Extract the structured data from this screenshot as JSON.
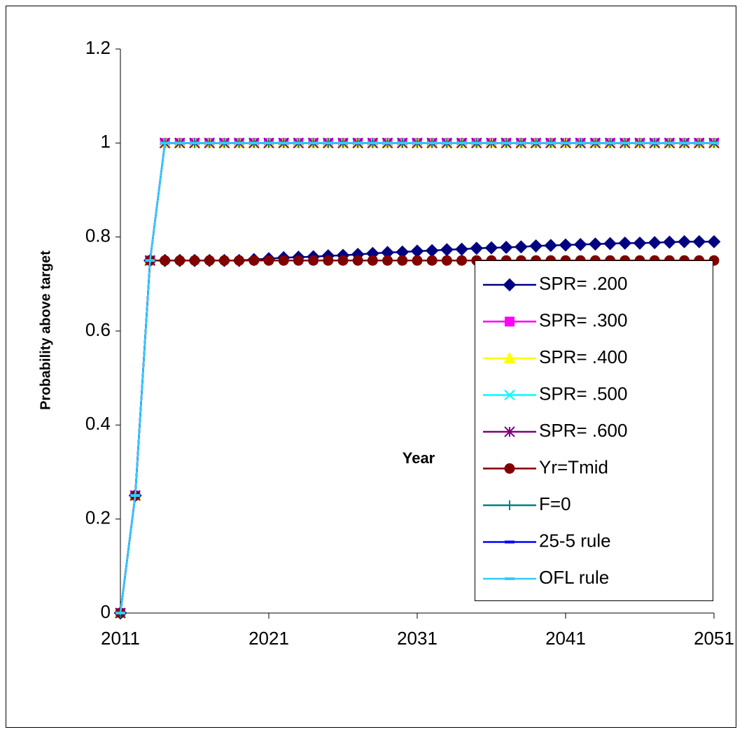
{
  "chart_data": {
    "type": "line",
    "x_label": "Year",
    "y_label": "Probability above target",
    "x": [
      2011,
      2012,
      2013,
      2014,
      2015,
      2016,
      2017,
      2018,
      2019,
      2020,
      2021,
      2022,
      2023,
      2024,
      2025,
      2026,
      2027,
      2028,
      2029,
      2030,
      2031,
      2032,
      2033,
      2034,
      2035,
      2036,
      2037,
      2038,
      2039,
      2040,
      2041,
      2042,
      2043,
      2044,
      2045,
      2046,
      2047,
      2048,
      2049,
      2050,
      2051
    ],
    "xlim": [
      2011,
      2051
    ],
    "xticks": [
      2011,
      2021,
      2031,
      2041,
      2051
    ],
    "ylim": [
      0,
      1.2
    ],
    "yticks": [
      0,
      0.2,
      0.4,
      0.6,
      0.8,
      1,
      1.2
    ],
    "grid": false,
    "legend": "lower right",
    "series": [
      {
        "name": "SPR= .200",
        "color": "#000080",
        "marker": "diamond",
        "values": [
          0,
          0.25,
          0.75,
          0.75,
          0.75,
          0.75,
          0.75,
          0.75,
          0.75,
          0.752,
          0.754,
          0.756,
          0.757,
          0.758,
          0.76,
          0.761,
          0.763,
          0.765,
          0.767,
          0.768,
          0.77,
          0.771,
          0.773,
          0.774,
          0.776,
          0.777,
          0.778,
          0.779,
          0.781,
          0.782,
          0.783,
          0.784,
          0.785,
          0.786,
          0.787,
          0.787,
          0.788,
          0.789,
          0.79,
          0.79,
          0.79
        ]
      },
      {
        "name": "SPR= .300",
        "color": "#ff00ff",
        "marker": "square",
        "values": [
          0,
          0.25,
          0.75,
          1,
          1,
          1,
          1,
          1,
          1,
          1,
          1,
          1,
          1,
          1,
          1,
          1,
          1,
          1,
          1,
          1,
          1,
          1,
          1,
          1,
          1,
          1,
          1,
          1,
          1,
          1,
          1,
          1,
          1,
          1,
          1,
          1,
          1,
          1,
          1,
          1,
          1
        ]
      },
      {
        "name": "SPR= .400",
        "color": "#ffff00",
        "marker": "triangle",
        "values": [
          0,
          0.25,
          0.75,
          1,
          1,
          1,
          1,
          1,
          1,
          1,
          1,
          1,
          1,
          1,
          1,
          1,
          1,
          1,
          1,
          1,
          1,
          1,
          1,
          1,
          1,
          1,
          1,
          1,
          1,
          1,
          1,
          1,
          1,
          1,
          1,
          1,
          1,
          1,
          1,
          1,
          1
        ]
      },
      {
        "name": "SPR= .500",
        "color": "#00ffff",
        "marker": "x",
        "values": [
          0,
          0.25,
          0.75,
          1,
          1,
          1,
          1,
          1,
          1,
          1,
          1,
          1,
          1,
          1,
          1,
          1,
          1,
          1,
          1,
          1,
          1,
          1,
          1,
          1,
          1,
          1,
          1,
          1,
          1,
          1,
          1,
          1,
          1,
          1,
          1,
          1,
          1,
          1,
          1,
          1,
          1
        ]
      },
      {
        "name": "SPR= .600",
        "color": "#800080",
        "marker": "star",
        "values": [
          0,
          0.25,
          0.75,
          1,
          1,
          1,
          1,
          1,
          1,
          1,
          1,
          1,
          1,
          1,
          1,
          1,
          1,
          1,
          1,
          1,
          1,
          1,
          1,
          1,
          1,
          1,
          1,
          1,
          1,
          1,
          1,
          1,
          1,
          1,
          1,
          1,
          1,
          1,
          1,
          1,
          1
        ]
      },
      {
        "name": "Yr=Tmid",
        "color": "#800000",
        "marker": "circle",
        "values": [
          0,
          0.25,
          0.75,
          0.75,
          0.75,
          0.75,
          0.75,
          0.75,
          0.75,
          0.75,
          0.75,
          0.75,
          0.75,
          0.75,
          0.75,
          0.75,
          0.75,
          0.75,
          0.75,
          0.75,
          0.75,
          0.75,
          0.75,
          0.75,
          0.75,
          0.75,
          0.75,
          0.75,
          0.75,
          0.75,
          0.75,
          0.75,
          0.75,
          0.75,
          0.75,
          0.75,
          0.75,
          0.75,
          0.75,
          0.75,
          0.75
        ]
      },
      {
        "name": "F=0",
        "color": "#008080",
        "marker": "plus",
        "values": [
          0,
          0.25,
          0.75,
          1,
          1,
          1,
          1,
          1,
          1,
          1,
          1,
          1,
          1,
          1,
          1,
          1,
          1,
          1,
          1,
          1,
          1,
          1,
          1,
          1,
          1,
          1,
          1,
          1,
          1,
          1,
          1,
          1,
          1,
          1,
          1,
          1,
          1,
          1,
          1,
          1,
          1
        ]
      },
      {
        "name": "25-5 rule",
        "color": "#0000ff",
        "marker": "dash",
        "values": [
          0,
          0.25,
          0.75,
          1,
          1,
          1,
          1,
          1,
          1,
          1,
          1,
          1,
          1,
          1,
          1,
          1,
          1,
          1,
          1,
          1,
          1,
          1,
          1,
          1,
          1,
          1,
          1,
          1,
          1,
          1,
          1,
          1,
          1,
          1,
          1,
          1,
          1,
          1,
          1,
          1,
          1
        ]
      },
      {
        "name": "OFL rule",
        "color": "#33ccff",
        "marker": "dash",
        "values": [
          0,
          0.25,
          0.75,
          1,
          1,
          1,
          1,
          1,
          1,
          1,
          1,
          1,
          1,
          1,
          1,
          1,
          1,
          1,
          1,
          1,
          1,
          1,
          1,
          1,
          1,
          1,
          1,
          1,
          1,
          1,
          1,
          1,
          1,
          1,
          1,
          1,
          1,
          1,
          1,
          1,
          1
        ]
      }
    ]
  }
}
